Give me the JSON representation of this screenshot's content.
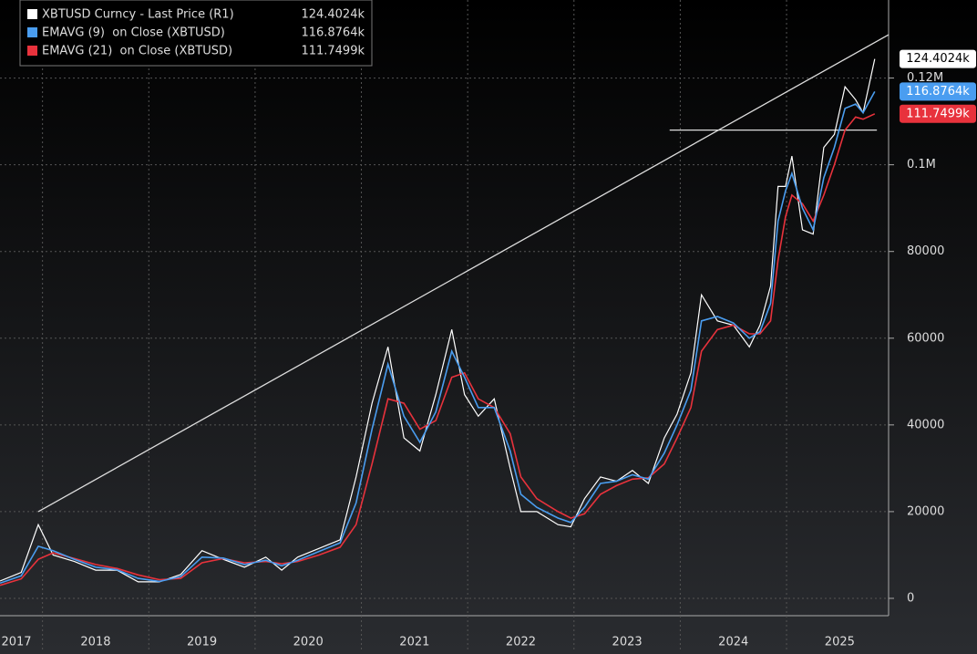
{
  "chart_data": {
    "type": "line",
    "xlim": [
      2017.6,
      2025.96
    ],
    "xticks": [
      {
        "value": 2017.5,
        "label": "2017"
      },
      {
        "value": 2018.5,
        "label": "2018"
      },
      {
        "value": 2019.5,
        "label": "2019"
      },
      {
        "value": 2020.5,
        "label": "2020"
      },
      {
        "value": 2021.5,
        "label": "2021"
      },
      {
        "value": 2022.5,
        "label": "2022"
      },
      {
        "value": 2023.5,
        "label": "2023"
      },
      {
        "value": 2024.5,
        "label": "2024"
      },
      {
        "value": 2025.5,
        "label": "2025"
      }
    ],
    "ylim": [
      -4000,
      138000
    ],
    "yticks": [
      0,
      20000,
      40000,
      60000,
      80000,
      {
        "value": 100000,
        "label": "0.1M"
      },
      {
        "value": 120000,
        "label": "0.12M"
      }
    ],
    "grid": true,
    "x": [
      2017.6,
      2017.8,
      2017.96,
      2018.1,
      2018.3,
      2018.5,
      2018.7,
      2018.9,
      2019.1,
      2019.3,
      2019.5,
      2019.7,
      2019.9,
      2020.1,
      2020.25,
      2020.4,
      2020.6,
      2020.8,
      2020.95,
      2021.1,
      2021.25,
      2021.4,
      2021.55,
      2021.7,
      2021.85,
      2021.97,
      2022.1,
      2022.25,
      2022.4,
      2022.5,
      2022.65,
      2022.85,
      2022.97,
      2023.1,
      2023.25,
      2023.4,
      2023.55,
      2023.7,
      2023.85,
      2023.97,
      2024.1,
      2024.2,
      2024.35,
      2024.5,
      2024.65,
      2024.75,
      2024.85,
      2024.92,
      2024.99,
      2025.05,
      2025.15,
      2025.25,
      2025.35,
      2025.45,
      2025.55,
      2025.65,
      2025.72,
      2025.83
    ],
    "series": [
      {
        "name": "XBTUSD Curncy - Last Price (R1)",
        "color": "#ffffff",
        "last": {
          "value": 124402.4,
          "label": "124.4024k"
        },
        "values": [
          4000,
          6000,
          17000,
          10000,
          8500,
          6500,
          6500,
          3800,
          3800,
          5500,
          11000,
          9000,
          7200,
          9500,
          6500,
          9500,
          11500,
          13500,
          28000,
          45000,
          58000,
          37000,
          34000,
          47000,
          62000,
          47000,
          42000,
          46000,
          30000,
          20000,
          20000,
          17000,
          16500,
          23000,
          28000,
          27000,
          29500,
          26500,
          37000,
          42500,
          52000,
          70000,
          64000,
          63000,
          58000,
          63000,
          72000,
          95000,
          95000,
          102000,
          85000,
          84000,
          104000,
          107000,
          118000,
          115000,
          112000,
          124402.4
        ]
      },
      {
        "name": "EMAVG (9)  on Close (XBTUSD)",
        "color": "#4a9df0",
        "last": {
          "value": 116876.4,
          "label": "116.8764k"
        },
        "values": [
          3500,
          5200,
          12000,
          11000,
          9000,
          7200,
          6600,
          4600,
          3900,
          5000,
          9500,
          9300,
          7800,
          8800,
          7500,
          8800,
          10800,
          12800,
          22000,
          39000,
          54000,
          42000,
          36000,
          43000,
          57000,
          51000,
          44000,
          44000,
          34000,
          24000,
          21000,
          18500,
          17500,
          21000,
          26500,
          27000,
          28500,
          27500,
          33500,
          40000,
          48000,
          64000,
          65000,
          63500,
          60000,
          61500,
          68000,
          87000,
          94000,
          98000,
          90000,
          85000,
          97000,
          104000,
          113000,
          114000,
          112000,
          116876.4
        ]
      },
      {
        "name": "EMAVG (21)  on Close (XBTUSD)",
        "color": "#e8323c",
        "last": {
          "value": 111749.9,
          "label": "111.7499k"
        },
        "values": [
          3000,
          4500,
          9000,
          10500,
          9200,
          7800,
          6900,
          5400,
          4300,
          4600,
          8200,
          9200,
          8200,
          8500,
          8000,
          8500,
          10000,
          11800,
          17000,
          31000,
          46000,
          45000,
          39000,
          41000,
          51000,
          52000,
          46000,
          44000,
          38000,
          28000,
          23000,
          20000,
          18500,
          19500,
          24000,
          26000,
          27500,
          27800,
          31000,
          37000,
          44000,
          57000,
          62000,
          63000,
          61000,
          61000,
          64000,
          78000,
          88000,
          93000,
          91000,
          87000,
          93000,
          100000,
          108000,
          111000,
          110500,
          111749.9
        ]
      }
    ],
    "annotations": [
      {
        "x": [
          2017.96,
          2025.96
        ],
        "y": [
          20000,
          130000
        ]
      },
      {
        "x": [
          2023.9,
          2025.85
        ],
        "y": [
          108000,
          108000
        ]
      }
    ]
  }
}
